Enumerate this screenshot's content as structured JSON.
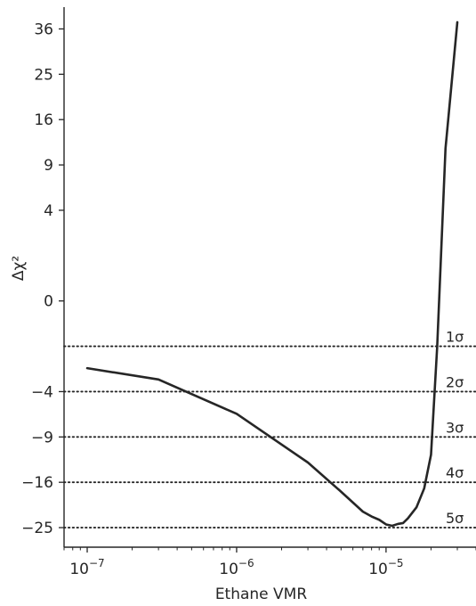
{
  "chart_data": {
    "type": "line",
    "xlabel": "Ethane VMR",
    "ylabel": "Δχ²",
    "x_scale": "log",
    "y_scale": "signed-sqrt",
    "xlim": [
      7e-08,
      4e-05
    ],
    "ylim": [
      -29.5,
      42
    ],
    "x_ticks": [
      {
        "value": 1e-07,
        "base": "10",
        "exp": "−7"
      },
      {
        "value": 1e-06,
        "base": "10",
        "exp": "−6"
      },
      {
        "value": 1e-05,
        "base": "10",
        "exp": "−5"
      }
    ],
    "y_ticks": [
      {
        "value": 36,
        "label": "36"
      },
      {
        "value": 25,
        "label": "25"
      },
      {
        "value": 16,
        "label": "16"
      },
      {
        "value": 9,
        "label": "9"
      },
      {
        "value": 4,
        "label": "4"
      },
      {
        "value": 0,
        "label": "0"
      },
      {
        "value": -4,
        "label": "−4"
      },
      {
        "value": -9,
        "label": "−9"
      },
      {
        "value": -16,
        "label": "−16"
      },
      {
        "value": -25,
        "label": "−25"
      }
    ],
    "series": [
      {
        "color": "#262626",
        "x": [
          1e-07,
          3e-07,
          1e-06,
          3e-06,
          5e-06,
          7e-06,
          8e-06,
          9e-06,
          1e-05,
          1.1e-05,
          1.2e-05,
          1.3e-05,
          1.4e-05,
          1.6e-05,
          1.8e-05,
          2e-05,
          2.2e-05,
          2.5e-05,
          3e-05
        ],
        "y": [
          -2.2,
          -3.0,
          -6.2,
          -12.7,
          -17.7,
          -21.6,
          -22.6,
          -23.3,
          -24.3,
          -24.6,
          -24.2,
          -24.0,
          -23.0,
          -20.7,
          -17.1,
          -11.5,
          -1.0,
          11.3,
          37.8
        ]
      }
    ],
    "reference_lines": [
      {
        "y": -1,
        "label": "1σ"
      },
      {
        "y": -4,
        "label": "2σ"
      },
      {
        "y": -9,
        "label": "3σ"
      },
      {
        "y": -16,
        "label": "4σ"
      },
      {
        "y": -25,
        "label": "5σ"
      }
    ],
    "grid": false,
    "legend": "none"
  }
}
